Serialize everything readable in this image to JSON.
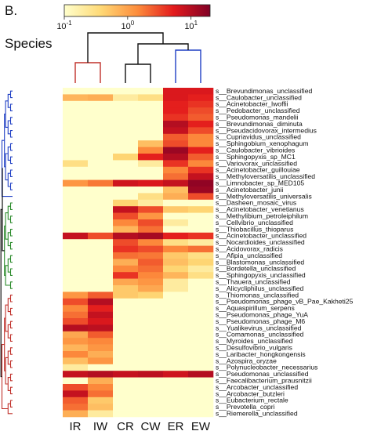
{
  "panel_label": "B.",
  "species_heading": "Species",
  "chart_data": {
    "type": "heatmap",
    "title": "",
    "columns": [
      "IR",
      "IW",
      "CR",
      "CW",
      "ER",
      "EW"
    ],
    "rows": [
      "s__Brevundimonas_unclassified",
      "s__Caulobacter_unclassified",
      "s__Acinetobacter_lwoffii",
      "s__Pedobacter_unclassified",
      "s__Pseudomonas_mandelii",
      "s__Brevundimonas_diminuta",
      "s__Pseudacidovorax_intermedius",
      "s__Cupriavidus_unclassified",
      "s__Sphingobium_xenophagum",
      "s__Caulobacter_vibrioides",
      "s__Sphingopyxis_sp_MC1",
      "s__Variovorax_unclassified",
      "s__Acinetobacter_guillouiae",
      "s__Methyloversatilis_unclassified",
      "s__Limnobacter_sp_MED105",
      "s__Acinetobacter_junii",
      "s__Methyloversatilis_universalis",
      "s__Dasheen_mosaic_virus",
      "s__Acinetobacter_venetianus",
      "s__Methylibium_petroleiphilum",
      "s__Cellvibrio_unclassified",
      "s__Thiobacillus_thioparus",
      "s__Acinetobacter_unclassified",
      "s__Nocardioides_unclassified",
      "s__Acidovorax_radicis",
      "s__Afipia_unclassified",
      "s__Blastomonas_unclassified",
      "s__Bordetella_unclassified",
      "s__Sphingopyxis_unclassified",
      "s__Thauera_unclassified",
      "s__Alicycliphilus_unclassified",
      "s__Thiomonas_unclassified",
      "s__Pseudomonas_phage_vB_Pae_Kakheti25",
      "s__Aquaspirillum_serpens",
      "s__Pseudomonas_phage_YuA",
      "s__Pseudomonas_phage_M6",
      "s__Yualikevirus_unclassified",
      "s__Comamonas_unclassified",
      "s__Myroides_unclassified",
      "s__Desulfovibrio_vulgaris",
      "s__Laribacter_hongkongensis",
      "s__Azospira_oryzae",
      "s__Polynucleobacter_necessarius",
      "s__Pseudomonas_unclassified",
      "s__Faecalibacterium_prausnitzii",
      "s__Arcobacter_unclassified",
      "s__Arcobacter_butzleri",
      "s__Eubacterium_rectale",
      "s__Prevotella_copri",
      "s__Riemerella_unclassified"
    ],
    "colorbar": {
      "scale": "log",
      "range": [
        0.1,
        20
      ],
      "tick_values": [
        0.1,
        1,
        10
      ],
      "tick_labels": [
        "10",
        "10",
        "10"
      ],
      "tick_exponents": [
        "-1",
        "0",
        "1"
      ],
      "colors": [
        "#ffffcc",
        "#fed976",
        "#fd8d3c",
        "#e31a1c",
        "#800026"
      ]
    },
    "values": [
      [
        0.1,
        0.1,
        0.1,
        0.1,
        6,
        6
      ],
      [
        0.7,
        0.8,
        0.2,
        0.3,
        6,
        5
      ],
      [
        0.1,
        0.1,
        0.1,
        0.1,
        5,
        4
      ],
      [
        0.1,
        0.1,
        0.1,
        0.1,
        5,
        3
      ],
      [
        0.1,
        0.1,
        0.1,
        0.1,
        4,
        2.5
      ],
      [
        0.1,
        0.1,
        0.1,
        0.1,
        10,
        5
      ],
      [
        0.1,
        0.1,
        0.1,
        0.1,
        8,
        3
      ],
      [
        0.1,
        0.1,
        0.1,
        0.1,
        2.5,
        1.5
      ],
      [
        0.1,
        0.1,
        0.1,
        0.6,
        3,
        1.5
      ],
      [
        0.1,
        0.1,
        0.1,
        1.5,
        14,
        5
      ],
      [
        0.1,
        0.1,
        0.4,
        5,
        10,
        2.5
      ],
      [
        0.3,
        0.1,
        0.1,
        0.2,
        4,
        1.5
      ],
      [
        0.1,
        0.1,
        0.1,
        0.1,
        1.5,
        4
      ],
      [
        0.1,
        0.1,
        0.1,
        0.1,
        2,
        8
      ],
      [
        1.2,
        1.8,
        7,
        6,
        8,
        16
      ],
      [
        0.1,
        0.1,
        0.1,
        0.1,
        0.6,
        14
      ],
      [
        0.1,
        0.1,
        0.1,
        0.3,
        0.8,
        3
      ],
      [
        0.1,
        0.1,
        0.4,
        0.2,
        0.1,
        0.1
      ],
      [
        0.1,
        0.1,
        8,
        3,
        0.5,
        0.4
      ],
      [
        0.1,
        0.1,
        3,
        1.2,
        0.1,
        0.1
      ],
      [
        0.1,
        0.1,
        1.5,
        3,
        0.2,
        0.1
      ],
      [
        0.1,
        0.1,
        0.7,
        2,
        0.1,
        0.1
      ],
      [
        8,
        3,
        10,
        12,
        5,
        4
      ],
      [
        0.1,
        0.1,
        3,
        1.5,
        0.3,
        0.2
      ],
      [
        0.1,
        0.1,
        4,
        3,
        1.5,
        2
      ],
      [
        0.1,
        0.1,
        2,
        1.8,
        0.5,
        0.3
      ],
      [
        0.1,
        0.1,
        0.8,
        2.5,
        0.6,
        0.4
      ],
      [
        0.1,
        0.1,
        1.5,
        2,
        0.4,
        0.2
      ],
      [
        0.1,
        0.1,
        4,
        1.5,
        0.7,
        0.3
      ],
      [
        0.1,
        0.1,
        0.9,
        1.2,
        0.2,
        0.1
      ],
      [
        0.1,
        0.1,
        0.5,
        0.9,
        0.2,
        0.1
      ],
      [
        1.2,
        2.5,
        0.5,
        0.4,
        0.1,
        0.1
      ],
      [
        3,
        10,
        0.1,
        0.1,
        0.1,
        0.1
      ],
      [
        1.5,
        5,
        0.1,
        0.1,
        0.1,
        0.1
      ],
      [
        2,
        8,
        0.1,
        0.1,
        0.1,
        0.1
      ],
      [
        3,
        6,
        0.1,
        0.1,
        0.1,
        0.1
      ],
      [
        10,
        9,
        0.1,
        0.1,
        0.1,
        0.1
      ],
      [
        0.9,
        2.5,
        0.1,
        0.1,
        0.1,
        0.1
      ],
      [
        1.2,
        1.5,
        0.1,
        0.1,
        0.1,
        0.1
      ],
      [
        0.7,
        1.2,
        0.1,
        0.1,
        0.1,
        0.1
      ],
      [
        1.5,
        0.8,
        0.1,
        0.1,
        0.1,
        0.1
      ],
      [
        0.6,
        1.2,
        0.1,
        0.1,
        0.1,
        0.1
      ],
      [
        0.2,
        0.1,
        0.1,
        0.1,
        0.1,
        0.1
      ],
      [
        8,
        10,
        8,
        9,
        7,
        10
      ],
      [
        0.1,
        0.8,
        0.1,
        0.1,
        0.1,
        0.1
      ],
      [
        3,
        1.5,
        0.1,
        0.1,
        0.1,
        0.1
      ],
      [
        8,
        2,
        0.1,
        0.1,
        0.1,
        0.1
      ],
      [
        2.5,
        0.5,
        0.1,
        0.1,
        0.1,
        0.1
      ],
      [
        2,
        0.6,
        0.1,
        0.1,
        0.1,
        0.1
      ],
      [
        0.8,
        0.2,
        0.1,
        0.1,
        0.1,
        0.1
      ]
    ],
    "row_dendrogram_clusters": [
      {
        "color": "#1f3fc4",
        "rows": [
          0,
          16
        ]
      },
      {
        "color": "#2a8a2a",
        "rows": [
          17,
          30
        ]
      },
      {
        "color": "#c0302a",
        "rows": [
          31,
          49
        ]
      }
    ],
    "column_dendrogram_clusters": [
      {
        "color": "#c0302a",
        "columns": [
          "IR",
          "IW"
        ]
      },
      {
        "color": "#111111",
        "columns": [
          "CR",
          "CW"
        ]
      },
      {
        "color": "#1f3fc4",
        "columns": [
          "ER",
          "EW"
        ]
      }
    ]
  }
}
